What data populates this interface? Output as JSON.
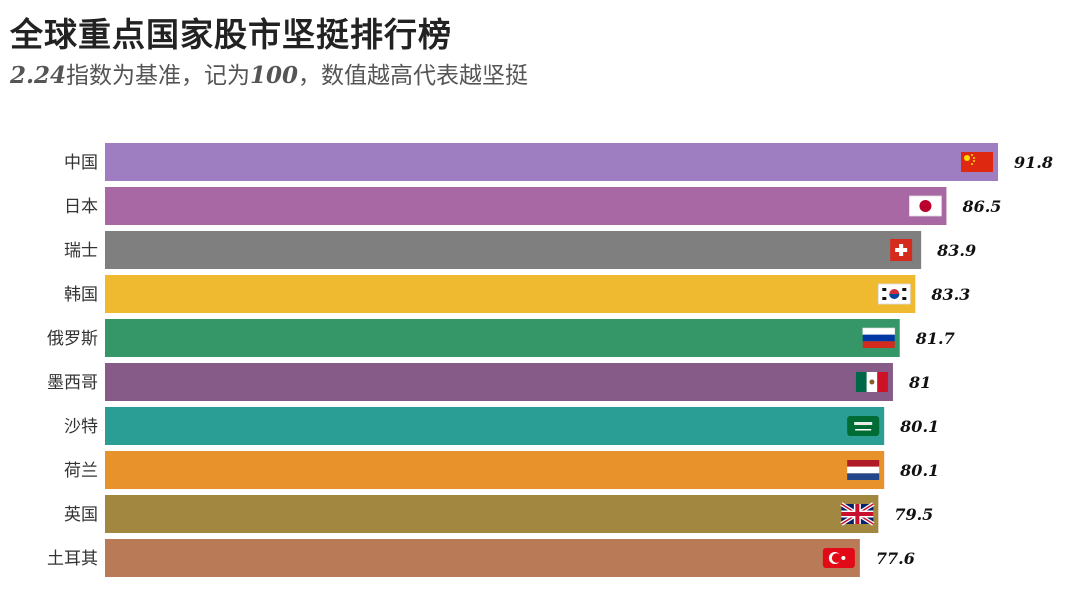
{
  "title": "全球重点国家股市坚挺排行榜",
  "subtitle": {
    "base_date": "2.24",
    "text_a": "指数为基准，记为",
    "base_value": "100",
    "text_b": "，数值越高代表越坚挺"
  },
  "chart_data": {
    "type": "bar",
    "orientation": "horizontal",
    "title": "全球重点国家股市坚挺排行榜",
    "categories": [
      "中国",
      "日本",
      "瑞士",
      "韩国",
      "俄罗斯",
      "墨西哥",
      "沙特",
      "荷兰",
      "英国",
      "土耳其"
    ],
    "values": [
      91.8,
      86.5,
      83.9,
      83.3,
      81.7,
      81,
      80.1,
      80.1,
      79.5,
      77.6
    ],
    "value_labels": [
      "91.8",
      "86.5",
      "83.9",
      "83.3",
      "81.7",
      "81",
      "80.1",
      "80.1",
      "79.5",
      "77.6"
    ],
    "colors": [
      "#9e7dc1",
      "#a868a3",
      "#7f7f7f",
      "#f0ba30",
      "#359767",
      "#875b87",
      "#2a9d94",
      "#e8922c",
      "#a1873f",
      "#b87a57"
    ],
    "flags": [
      "china-flag-icon",
      "japan-flag-icon",
      "switzerland-flag-icon",
      "south-korea-flag-icon",
      "russia-flag-icon",
      "mexico-flag-icon",
      "saudi-arabia-flag-icon",
      "netherlands-flag-icon",
      "uk-flag-icon",
      "turkey-flag-icon"
    ],
    "xlim": [
      0,
      91.8
    ],
    "grid": false,
    "legend": "none"
  }
}
